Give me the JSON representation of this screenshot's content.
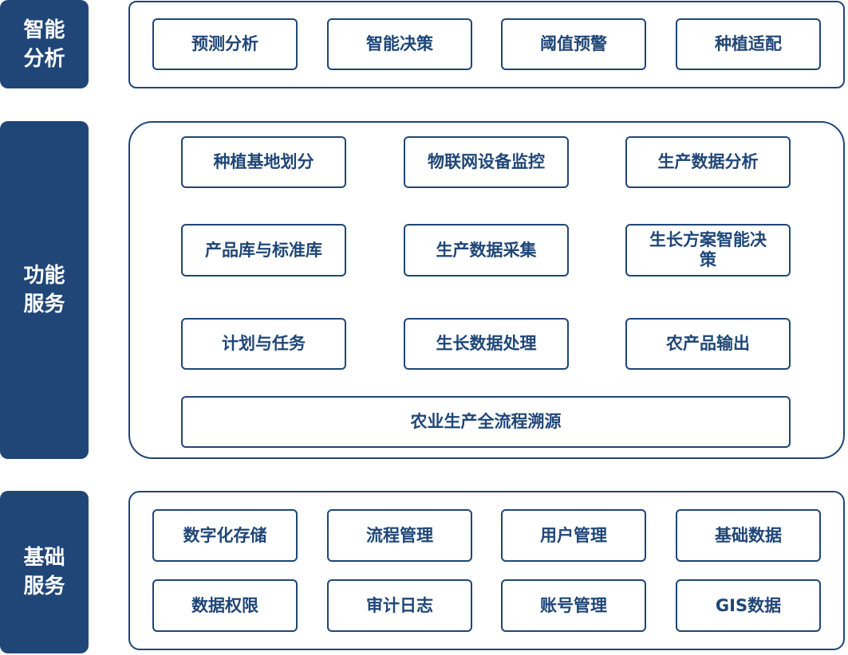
{
  "colors": {
    "primary": "#1f4677",
    "background": "#ffffff"
  },
  "tiers": [
    {
      "label": "智能分析",
      "modules": [
        "预测分析",
        "智能决策",
        "阈值预警",
        "种植适配"
      ]
    },
    {
      "label": "功能服务",
      "modules": [
        "种植基地划分",
        "物联网设备监控",
        "生产数据分析",
        "产品库与标准库",
        "生产数据采集",
        "生长方案智能决策",
        "计划与任务",
        "生长数据处理",
        "农产品输出",
        "农业生产全流程溯源"
      ]
    },
    {
      "label": "基础服务",
      "modules": [
        "数字化存储",
        "流程管理",
        "用户管理",
        "基础数据",
        "数据权限",
        "审计日志",
        "账号管理",
        "GIS数据"
      ]
    }
  ]
}
